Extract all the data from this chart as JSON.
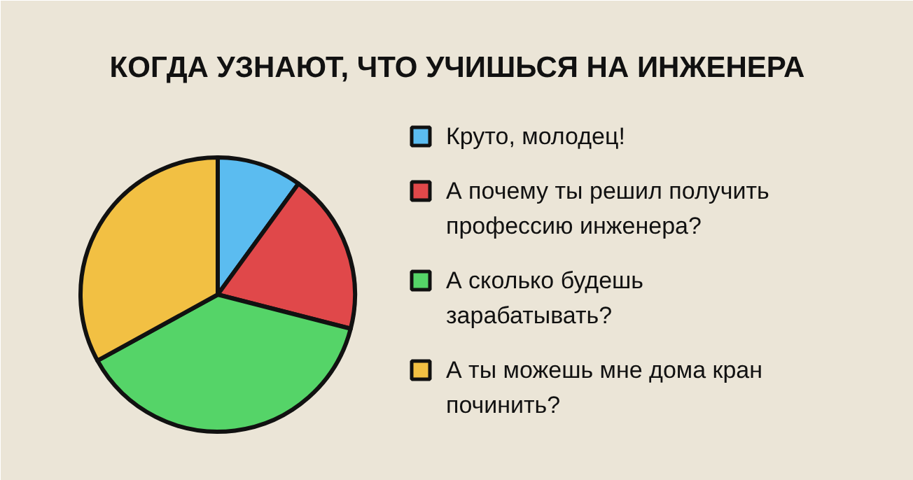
{
  "chart_data": {
    "type": "pie",
    "title": "КОГДА УЗНАЮТ, ЧТО УЧИШЬСЯ НА ИНЖЕНЕРА",
    "categories": [
      "Круто, молодец!",
      "А почему ты решил получить профессию инженера?",
      "А сколько будешь зарабатывать?",
      "А ты можешь мне дома кран починить?"
    ],
    "values": [
      10,
      19,
      38,
      33
    ],
    "colors": [
      "#5bbcf0",
      "#e0484a",
      "#55d468",
      "#f2c043"
    ],
    "legend": "right"
  }
}
